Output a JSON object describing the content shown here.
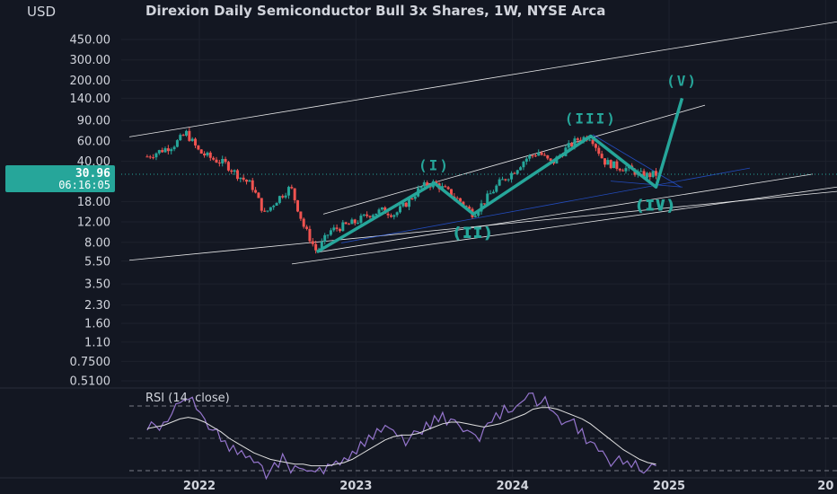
{
  "header": {
    "currency": "USD"
  },
  "chart_data": {
    "type": "candlestick",
    "title": "Direxion Daily Semiconductor Bull 3x Shares, 1W, NYSE Arca",
    "y_scale": "log",
    "y_ticks": [
      "450.00",
      "300.00",
      "200.00",
      "140.00",
      "90.00",
      "60.00",
      "40.00",
      "18.00",
      "12.00",
      "8.00",
      "5.50",
      "3.50",
      "2.30",
      "1.60",
      "1.10",
      "0.7500",
      "0.5100"
    ],
    "x_ticks": [
      "2022",
      "2023",
      "2024",
      "2025",
      "20"
    ],
    "last_price": {
      "value": "30.96",
      "countdown": "06:16:05"
    },
    "price_path": [
      [
        "2021-09",
        44
      ],
      [
        "2021-11",
        55
      ],
      [
        "2021-12",
        70
      ],
      [
        "2022-01",
        48
      ],
      [
        "2022-02",
        42
      ],
      [
        "2022-03",
        38
      ],
      [
        "2022-04",
        30
      ],
      [
        "2022-05",
        25
      ],
      [
        "2022-06",
        14
      ],
      [
        "2022-07",
        19
      ],
      [
        "2022-08",
        24
      ],
      [
        "2022-09",
        11
      ],
      [
        "2022-10",
        6.6
      ],
      [
        "2022-11",
        10
      ],
      [
        "2022-12",
        11
      ],
      [
        "2023-01",
        12
      ],
      [
        "2023-02",
        14
      ],
      [
        "2023-03",
        15
      ],
      [
        "2023-04",
        14
      ],
      [
        "2023-05",
        18
      ],
      [
        "2023-06",
        24
      ],
      [
        "2023-07",
        26
      ],
      [
        "2023-08",
        22
      ],
      [
        "2023-09",
        18
      ],
      [
        "2023-10",
        14
      ],
      [
        "2023-11",
        19
      ],
      [
        "2023-12",
        26
      ],
      [
        "2024-01",
        32
      ],
      [
        "2024-02",
        42
      ],
      [
        "2024-03",
        48
      ],
      [
        "2024-04",
        38
      ],
      [
        "2024-05",
        50
      ],
      [
        "2024-06",
        62
      ],
      [
        "2024-07",
        66
      ],
      [
        "2024-08",
        40
      ],
      [
        "2024-09",
        36
      ],
      [
        "2024-10",
        34
      ],
      [
        "2024-11",
        30
      ],
      [
        "2024-12",
        30.96
      ]
    ],
    "elliott_waves": [
      {
        "label": "(I)",
        "date": "2023-07",
        "value": 26
      },
      {
        "label": "(II)",
        "date": "2023-10",
        "value": 14
      },
      {
        "label": "(III)",
        "date": "2024-07",
        "value": 66
      },
      {
        "label": "(IV)",
        "date": "2024-12",
        "value": 24
      },
      {
        "label": "(V)",
        "date": "2025-02",
        "value": 140
      }
    ],
    "rsi": {
      "label": "RSI (14, close)",
      "values": [
        55,
        58,
        60,
        65,
        72,
        74,
        68,
        62,
        55,
        48,
        42,
        40,
        38,
        35,
        33,
        30,
        32,
        35,
        33,
        31,
        30,
        32,
        34,
        36,
        38,
        42,
        48,
        52,
        56,
        58,
        55,
        52,
        50,
        54,
        60,
        64,
        66,
        62,
        58,
        55,
        52,
        56,
        60,
        62,
        66,
        70,
        74,
        78,
        72,
        68,
        64,
        60,
        62,
        56,
        48,
        42,
        38,
        36,
        34,
        32,
        30,
        31,
        33
      ],
      "ma_values": [
        56,
        57,
        58,
        60,
        62,
        63,
        62,
        60,
        57,
        54,
        50,
        47,
        44,
        41,
        39,
        37,
        36,
        35,
        34,
        34,
        33,
        33,
        33,
        34,
        35,
        37,
        40,
        43,
        46,
        49,
        51,
        52,
        52,
        53,
        55,
        57,
        59,
        60,
        60,
        59,
        58,
        57,
        58,
        59,
        61,
        63,
        65,
        68,
        69,
        69,
        68,
        66,
        64,
        62,
        59,
        55,
        51,
        47,
        43,
        40,
        37,
        35,
        34
      ]
    }
  }
}
